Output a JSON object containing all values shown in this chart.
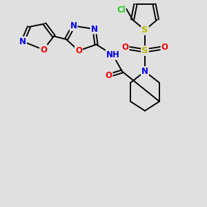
{
  "bg_color": "#e0e0e0",
  "atom_colors": {
    "C": "#000000",
    "N": "#0000ee",
    "O": "#ee0000",
    "S": "#bbbb00",
    "Cl": "#22cc22",
    "H": "#448888"
  },
  "bond_color": "#000000",
  "font_size": 8.5,
  "bond_width": 1.4
}
